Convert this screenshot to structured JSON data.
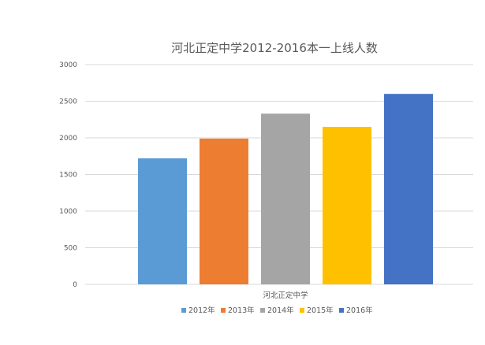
{
  "chart_data": {
    "type": "bar",
    "title": "河北正定中学2012-2016本一上线人数",
    "categories": [
      "河北正定中学"
    ],
    "series": [
      {
        "name": "2012年",
        "values": [
          1720
        ],
        "color": "#5b9bd5"
      },
      {
        "name": "2013年",
        "values": [
          1990
        ],
        "color": "#ed7d31"
      },
      {
        "name": "2014年",
        "values": [
          2330
        ],
        "color": "#a5a5a5"
      },
      {
        "name": "2015年",
        "values": [
          2150
        ],
        "color": "#ffc000"
      },
      {
        "name": "2016年",
        "values": [
          2600
        ],
        "color": "#4472c4"
      }
    ],
    "yticks": [
      "0",
      "500",
      "1000",
      "1500",
      "2000",
      "2500",
      "3000"
    ],
    "ylim": [
      0,
      3000
    ],
    "grid": true,
    "legend_position": "bottom"
  }
}
